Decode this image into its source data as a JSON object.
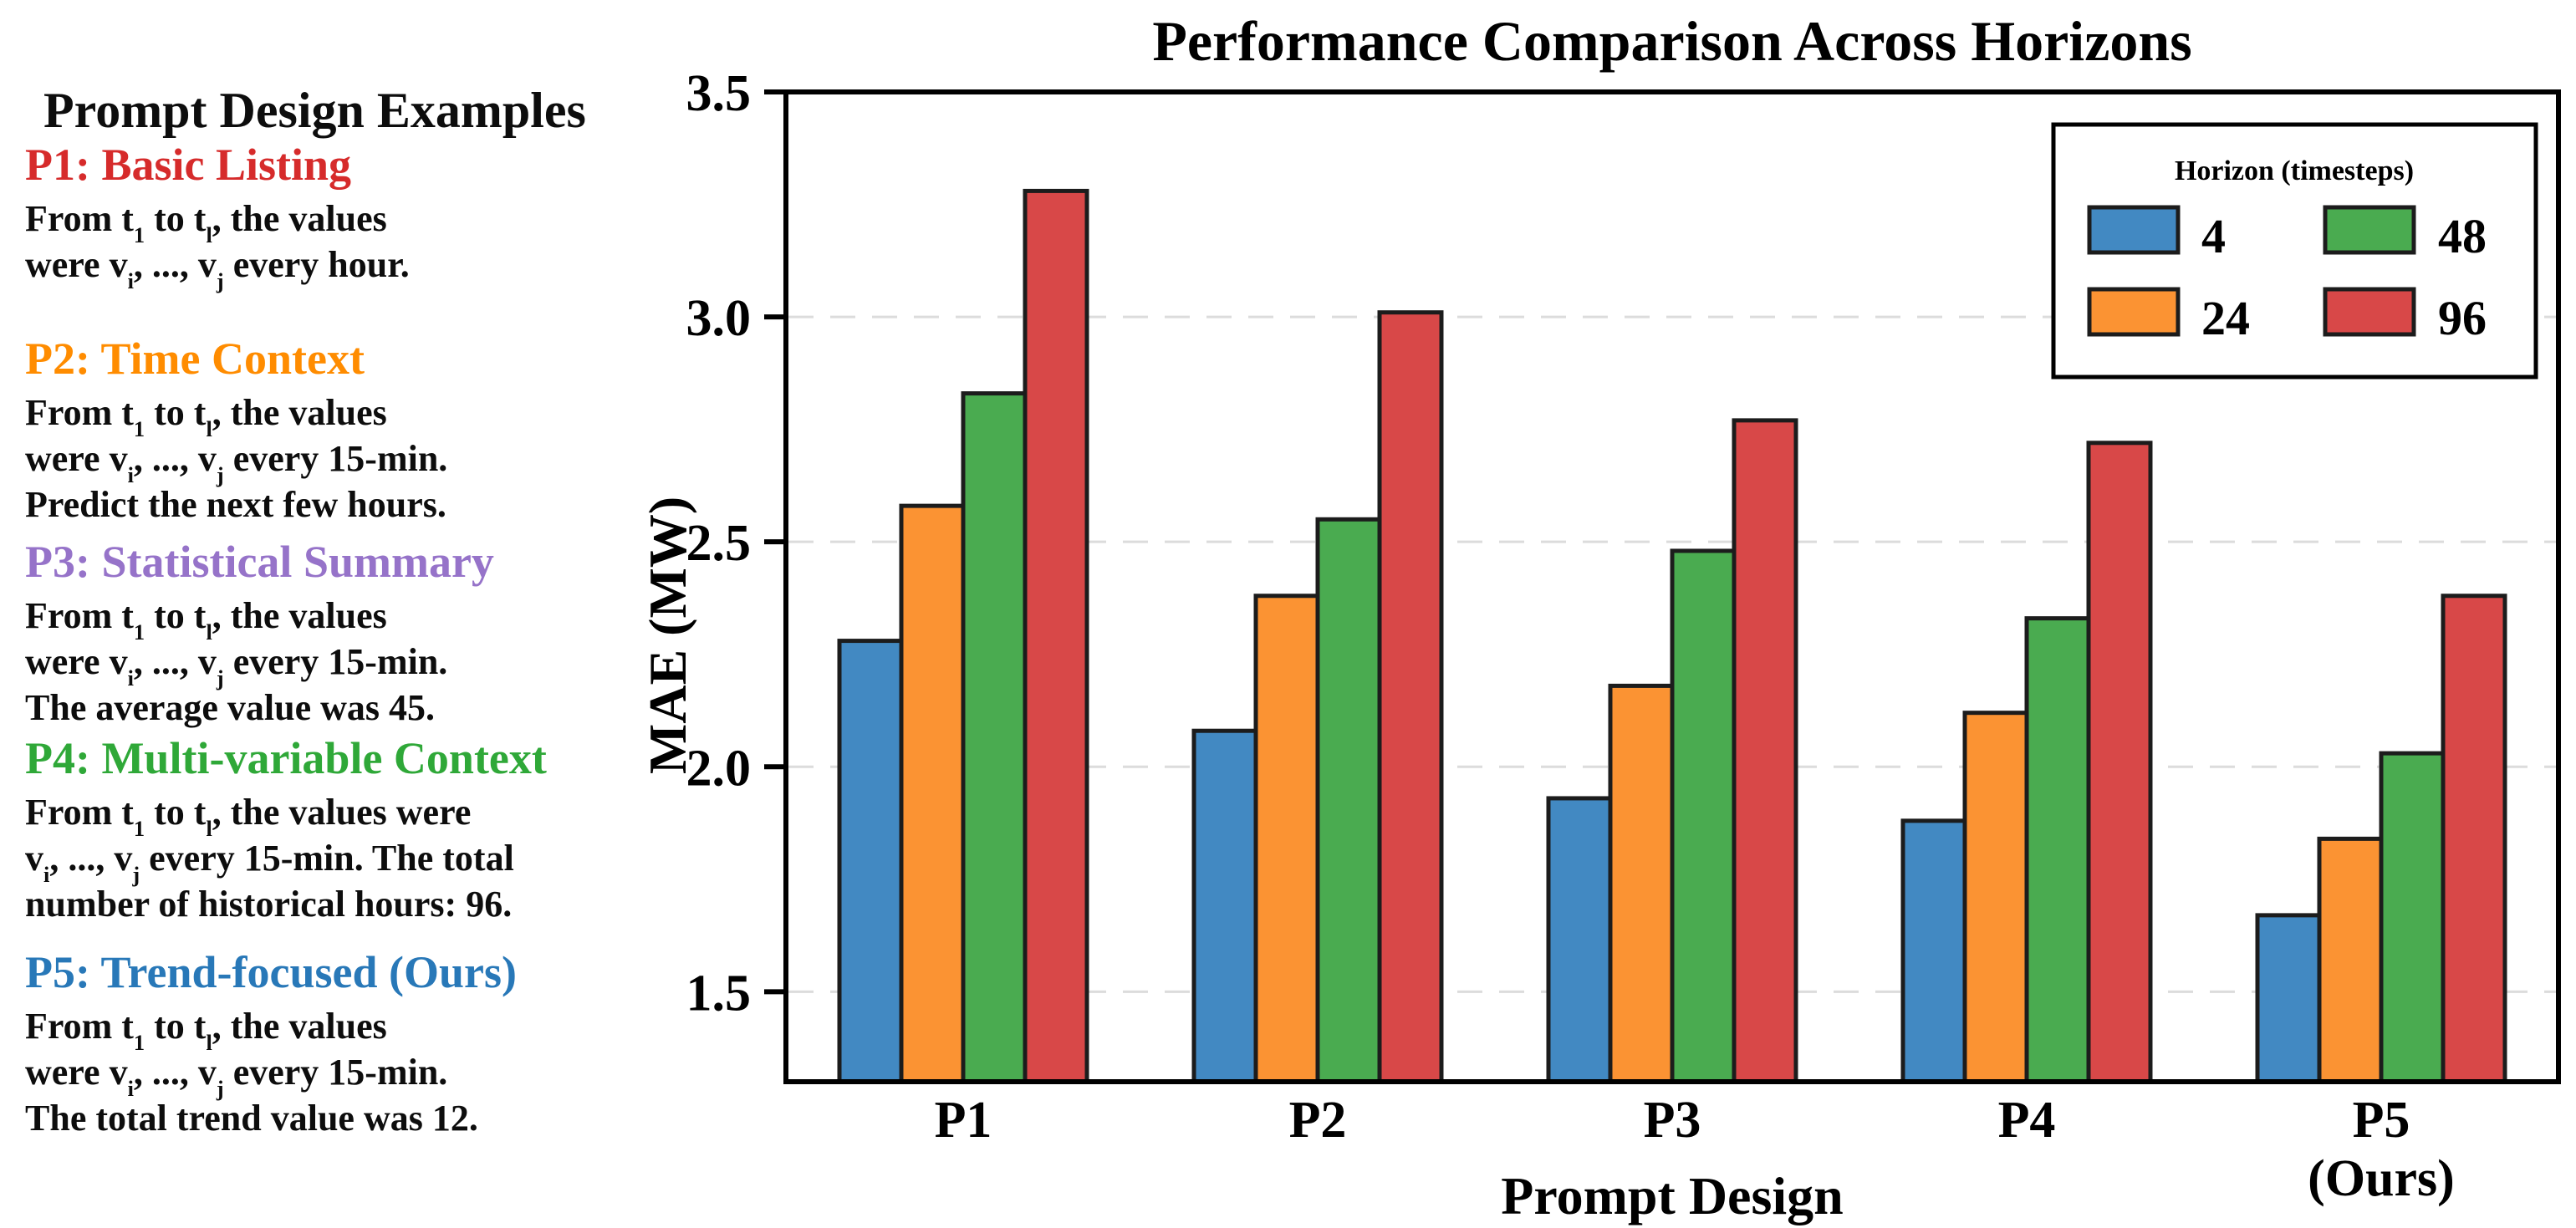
{
  "left_panel": {
    "title": "Prompt Design Examples",
    "prompts": [
      {
        "id": "P1",
        "heading": "P1: Basic Listing",
        "color": "#d62b2b",
        "lines": [
          "From t_1 to t_l, the values",
          "were v_i, ..., v_j every hour."
        ]
      },
      {
        "id": "P2",
        "heading": "P2: Time Context",
        "color": "#ff8c00",
        "lines": [
          "From t_1 to t_l, the values",
          "were v_i, ..., v_j every 15-min.",
          "Predict the next few hours."
        ]
      },
      {
        "id": "P3",
        "heading": "P3: Statistical Summary",
        "color": "#9673c9",
        "lines": [
          "From t_1 to t_l, the values",
          "were v_i, ..., v_j every 15-min.",
          "The average value was 45."
        ]
      },
      {
        "id": "P4",
        "heading": "P4: Multi-variable Context",
        "color": "#2fa838",
        "lines": [
          "From t_1 to t_l, the values were",
          "v_i, ..., v_j every 15-min. The total",
          "number of historical hours: 96."
        ]
      },
      {
        "id": "P5",
        "heading": "P5: Trend-focused (Ours)",
        "color": "#2878b8",
        "lines": [
          "From t_1 to t_l, the values",
          "were v_i, ..., v_j every 15-min.",
          "The total trend value was 12."
        ]
      }
    ]
  },
  "chart_data": {
    "type": "bar",
    "title": "Performance Comparison Across Horizons",
    "xlabel": "Prompt Design",
    "ylabel": "MAE (MW)",
    "categories": [
      "P1",
      "P2",
      "P3",
      "P4",
      "P5"
    ],
    "category_labels": [
      [
        "P1"
      ],
      [
        "P2"
      ],
      [
        "P3"
      ],
      [
        "P4"
      ],
      [
        "P5",
        "(Ours)"
      ]
    ],
    "legend_title": "Horizon (timesteps)",
    "legend_position": "upper right",
    "series": [
      {
        "name": "4",
        "color": "#4289c2",
        "values": [
          2.28,
          2.08,
          1.93,
          1.88,
          1.67
        ]
      },
      {
        "name": "24",
        "color": "#fb9333",
        "values": [
          2.58,
          2.38,
          2.18,
          2.12,
          1.84
        ]
      },
      {
        "name": "48",
        "color": "#4aab50",
        "values": [
          2.83,
          2.55,
          2.48,
          2.33,
          2.03
        ]
      },
      {
        "name": "96",
        "color": "#d84848",
        "values": [
          3.28,
          3.01,
          2.77,
          2.72,
          2.38
        ]
      }
    ],
    "ylim": [
      1.3,
      3.5
    ],
    "yticks": [
      1.5,
      2.0,
      2.5,
      3.0,
      3.5
    ],
    "grid": "horizontal-dashed",
    "bar_edge_color": "#1c1c1c"
  }
}
